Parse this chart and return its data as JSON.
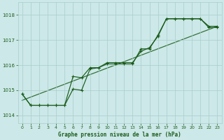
{
  "xlabel": "Graphe pression niveau de la mer (hPa)",
  "xlim": [
    -0.5,
    23.5
  ],
  "ylim": [
    1013.7,
    1018.5
  ],
  "yticks": [
    1014,
    1015,
    1016,
    1017,
    1018
  ],
  "xticks": [
    0,
    1,
    2,
    3,
    4,
    5,
    6,
    7,
    8,
    9,
    10,
    11,
    12,
    13,
    14,
    15,
    16,
    17,
    18,
    19,
    20,
    21,
    22,
    23
  ],
  "bg_color": "#cce8e8",
  "grid_color": "#aacccc",
  "line_color": "#1a5c1a",
  "series1_x": [
    0,
    1,
    2,
    3,
    4,
    5,
    6,
    7,
    8,
    9,
    10,
    11,
    12,
    13,
    14,
    15,
    16,
    17,
    18,
    19,
    20,
    21,
    22,
    23
  ],
  "series1_y": [
    1014.85,
    1014.4,
    1014.4,
    1014.4,
    1014.4,
    1014.4,
    1015.05,
    1015.0,
    1015.85,
    1015.9,
    1016.1,
    1016.1,
    1016.1,
    1016.1,
    1016.55,
    1016.7,
    1017.15,
    1017.85,
    1017.85,
    1017.85,
    1017.85,
    1017.85,
    1017.5,
    1017.5
  ],
  "series2_x": [
    0,
    1,
    2,
    3,
    4,
    5,
    6,
    7,
    8,
    9,
    10,
    11,
    12,
    13,
    14,
    15,
    16,
    17,
    18,
    19,
    20,
    21,
    22,
    23
  ],
  "series2_y": [
    1014.85,
    1014.4,
    1014.4,
    1014.4,
    1014.4,
    1014.4,
    1015.55,
    1015.5,
    1015.9,
    1015.9,
    1016.05,
    1016.05,
    1016.05,
    1016.05,
    1016.65,
    1016.65,
    1017.2,
    1017.85,
    1017.85,
    1017.85,
    1017.85,
    1017.85,
    1017.55,
    1017.55
  ],
  "trend_x": [
    0,
    23
  ],
  "trend_y": [
    1014.6,
    1017.55
  ]
}
